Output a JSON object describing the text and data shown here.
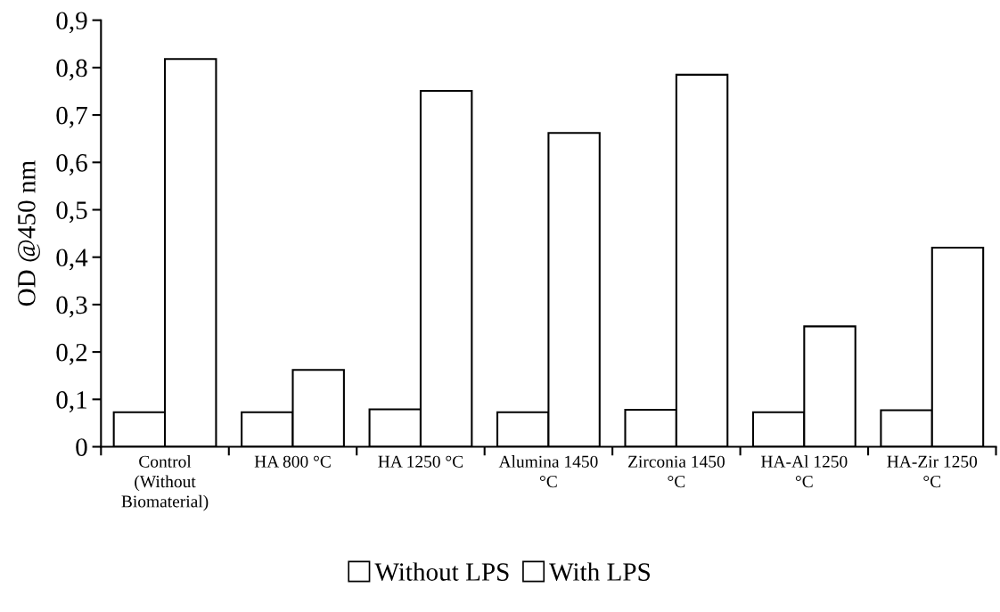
{
  "chart_data": {
    "type": "bar",
    "ylabel": "OD @450 nm",
    "categories": [
      "Control\n(Without\nBiomaterial)",
      "HA 800 °C",
      "HA 1250 °C",
      "Alumina 1450\n°C",
      "Zirconia 1450\n°C",
      "HA-Al 1250\n°C",
      "HA-Zir 1250\n°C"
    ],
    "series": [
      {
        "name": "Without LPS",
        "color": "#ffffff",
        "values": [
          0.073,
          0.073,
          0.079,
          0.073,
          0.078,
          0.073,
          0.077
        ]
      },
      {
        "name": "With LPS",
        "color": "#ffffff",
        "values": [
          0.818,
          0.162,
          0.751,
          0.662,
          0.785,
          0.254,
          0.42
        ]
      }
    ],
    "ylim": [
      0,
      0.9
    ],
    "yticks": [
      0,
      {
        "value": 0.1,
        "label": "0,1"
      },
      {
        "value": 0.2,
        "label": "0,2"
      },
      {
        "value": 0.3,
        "label": "0,3"
      },
      {
        "value": 0.4,
        "label": "0,4"
      },
      {
        "value": 0.5,
        "label": "0,5"
      },
      {
        "value": 0.6,
        "label": "0,6"
      },
      {
        "value": 0.7,
        "label": "0,7"
      },
      {
        "value": 0.8,
        "label": "0,8"
      },
      {
        "value": 0.9,
        "label": "0,9"
      }
    ],
    "grid": false,
    "legend": "bottom"
  }
}
